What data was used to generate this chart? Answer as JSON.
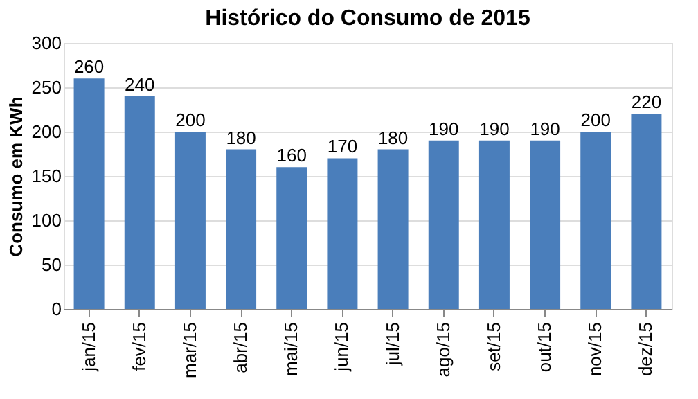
{
  "chart_data": {
    "type": "bar",
    "title": "Histórico do Consumo de 2015",
    "ylabel": "Consumo em KWh",
    "categories": [
      "jan/15",
      "fev/15",
      "mar/15",
      "abr/15",
      "mai/15",
      "jun/15",
      "jul/15",
      "ago/15",
      "set/15",
      "out/15",
      "nov/15",
      "dez/15"
    ],
    "values": [
      260,
      240,
      200,
      180,
      160,
      170,
      180,
      190,
      190,
      190,
      200,
      220
    ],
    "color": "#4a7ebb",
    "ylim": [
      0,
      300
    ],
    "yticks": [
      0,
      50,
      100,
      150,
      200,
      250,
      300
    ],
    "grid": "y",
    "data_labels": true
  }
}
